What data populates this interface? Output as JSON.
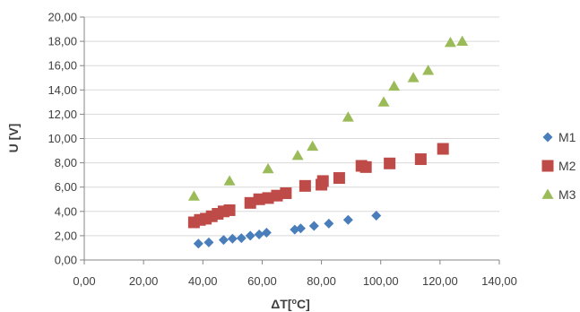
{
  "chart_data": {
    "type": "scatter",
    "title": "",
    "xlabel": "ΔT[",
    "xlabel_sup": "o",
    "xlabel_unit": "C]",
    "ylabel": "U [V]",
    "xlim": [
      0,
      140
    ],
    "ylim": [
      0,
      20
    ],
    "xticks": [
      "0,00",
      "20,00",
      "40,00",
      "60,00",
      "80,00",
      "100,00",
      "120,00",
      "140,00"
    ],
    "yticks": [
      "0,00",
      "2,00",
      "4,00",
      "6,00",
      "8,00",
      "10,00",
      "12,00",
      "14,00",
      "16,00",
      "18,00",
      "20,00"
    ],
    "grid": "horizontal",
    "legend_position": "right",
    "series": [
      {
        "name": "M1",
        "color": "#4a7ebb",
        "marker": "diamond",
        "points": [
          [
            38.5,
            1.35
          ],
          [
            42,
            1.45
          ],
          [
            47,
            1.65
          ],
          [
            50,
            1.75
          ],
          [
            53,
            1.8
          ],
          [
            56,
            2.0
          ],
          [
            59,
            2.1
          ],
          [
            61.5,
            2.25
          ],
          [
            71,
            2.5
          ],
          [
            73,
            2.6
          ],
          [
            77.5,
            2.8
          ],
          [
            82.5,
            3.0
          ],
          [
            89,
            3.3
          ],
          [
            98.5,
            3.65
          ]
        ]
      },
      {
        "name": "M2",
        "color": "#be4b48",
        "marker": "square",
        "points": [
          [
            37,
            3.1
          ],
          [
            39,
            3.3
          ],
          [
            41,
            3.4
          ],
          [
            43,
            3.6
          ],
          [
            45,
            3.8
          ],
          [
            47,
            4.0
          ],
          [
            49,
            4.1
          ],
          [
            56,
            4.7
          ],
          [
            59,
            5.0
          ],
          [
            62,
            5.1
          ],
          [
            65,
            5.3
          ],
          [
            68,
            5.5
          ],
          [
            74.5,
            6.1
          ],
          [
            80,
            6.2
          ],
          [
            80.5,
            6.5
          ],
          [
            86,
            6.75
          ],
          [
            93.5,
            7.75
          ],
          [
            95,
            7.65
          ],
          [
            103,
            7.95
          ],
          [
            113.5,
            8.3
          ],
          [
            121,
            9.15
          ]
        ]
      },
      {
        "name": "M3",
        "color": "#9bbb59",
        "marker": "triangle",
        "points": [
          [
            37,
            5.25
          ],
          [
            49,
            6.5
          ],
          [
            62,
            7.5
          ],
          [
            72,
            8.6
          ],
          [
            77,
            9.35
          ],
          [
            89,
            11.75
          ],
          [
            101,
            13.0
          ],
          [
            104.5,
            14.3
          ],
          [
            111,
            15.0
          ],
          [
            116,
            15.6
          ],
          [
            123.5,
            17.9
          ],
          [
            127.5,
            18.0
          ]
        ]
      }
    ]
  }
}
